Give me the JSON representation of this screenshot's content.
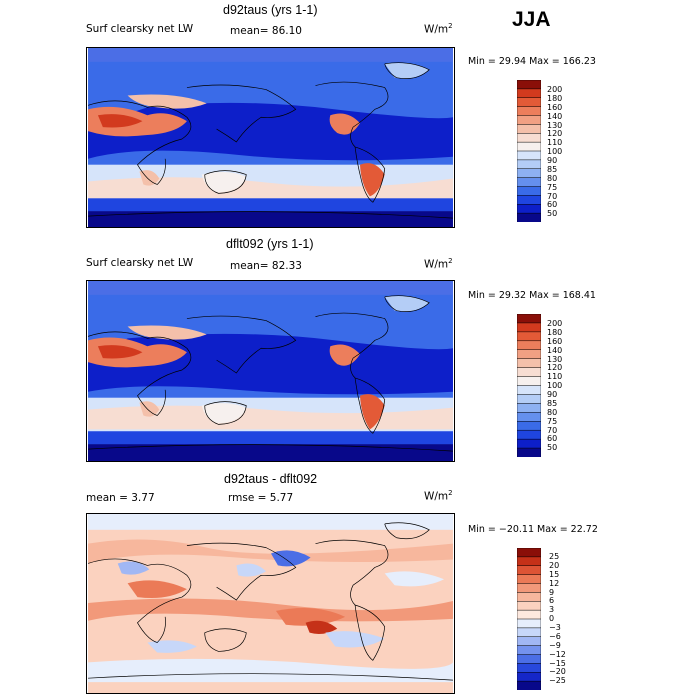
{
  "season": "JJA",
  "colors": {
    "abs_scale": [
      "#08088a",
      "#0d1fc9",
      "#1f45e0",
      "#3a6be8",
      "#6590ee",
      "#8eb1f2",
      "#b4cdf6",
      "#d6e4fa",
      "#f6f0ee",
      "#f7ddd2",
      "#f4c0aa",
      "#f1a083",
      "#ec7e5c",
      "#e35a37",
      "#d23a1e",
      "#8a0f08"
    ],
    "diff_scale": [
      "#08088a",
      "#1527c8",
      "#2848dc",
      "#4b6ee6",
      "#7492ee",
      "#a1b7f4",
      "#c7d7f9",
      "#e6eefc",
      "#fde9df",
      "#fbd2bf",
      "#f7b79d",
      "#f2997a",
      "#eb7a57",
      "#dd5435",
      "#c53118",
      "#8a0f08"
    ]
  },
  "panels": [
    {
      "title": "d92taus (yrs 1-1)",
      "left": "Surf clearsky net LW",
      "center": "mean=  86.10",
      "units": "W/m",
      "units_sup": "2",
      "minmax": "Min =  29.94 Max = 166.23",
      "ticks": [
        "200",
        "180",
        "160",
        "140",
        "130",
        "120",
        "110",
        "100",
        "90",
        "85",
        "80",
        "75",
        "70",
        "60",
        "50"
      ]
    },
    {
      "title": "dflt092 (yrs 1-1)",
      "left": "Surf clearsky net LW",
      "center": "mean=  82.33",
      "units": "W/m",
      "units_sup": "2",
      "minmax": "Min =  29.32 Max = 168.41",
      "ticks": [
        "200",
        "180",
        "160",
        "140",
        "130",
        "120",
        "110",
        "100",
        "90",
        "85",
        "80",
        "75",
        "70",
        "60",
        "50"
      ]
    },
    {
      "title": "d92taus - dflt092",
      "left": "mean =    3.77",
      "center": "rmse =    5.77",
      "units": "W/m",
      "units_sup": "2",
      "minmax": "Min = −20.11 Max =  22.72",
      "ticks": [
        "25",
        "20",
        "15",
        "12",
        "9",
        "6",
        "3",
        "0",
        "−3",
        "−6",
        "−9",
        "−12",
        "−15",
        "−20",
        "−25"
      ]
    }
  ],
  "chart_data": [
    {
      "type": "heatmap",
      "title": "d92taus (yrs 1-1)",
      "subtitle": "Surf clearsky net LW",
      "units": "W/m2",
      "mean": 86.1,
      "min": 29.94,
      "max": 166.23,
      "colorbar_levels": [
        50,
        60,
        70,
        75,
        80,
        85,
        90,
        100,
        110,
        120,
        130,
        140,
        160,
        180,
        200
      ],
      "season": "JJA"
    },
    {
      "type": "heatmap",
      "title": "dflt092 (yrs 1-1)",
      "subtitle": "Surf clearsky net LW",
      "units": "W/m2",
      "mean": 82.33,
      "min": 29.32,
      "max": 168.41,
      "colorbar_levels": [
        50,
        60,
        70,
        75,
        80,
        85,
        90,
        100,
        110,
        120,
        130,
        140,
        160,
        180,
        200
      ],
      "season": "JJA"
    },
    {
      "type": "heatmap",
      "title": "d92taus - dflt092",
      "units": "W/m2",
      "mean": 3.77,
      "rmse": 5.77,
      "min": -20.11,
      "max": 22.72,
      "colorbar_levels": [
        -25,
        -20,
        -15,
        -12,
        -9,
        -6,
        -3,
        0,
        3,
        6,
        9,
        12,
        15,
        20,
        25
      ],
      "season": "JJA"
    }
  ]
}
